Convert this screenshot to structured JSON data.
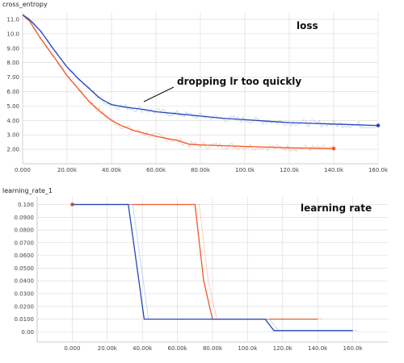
{
  "chart_data": [
    {
      "type": "line",
      "panel_title": "cross_entropy",
      "annotation_label": "loss",
      "callout_text": "dropping lr too quickly",
      "xlim": [
        0,
        160000
      ],
      "ylim": [
        1.0,
        11.5
      ],
      "x_ticks": [
        0,
        20000,
        40000,
        60000,
        80000,
        100000,
        120000,
        140000,
        160000
      ],
      "x_tick_labels": [
        "0.000",
        "20.00k",
        "40.00k",
        "60.00k",
        "80.00k",
        "100.0k",
        "120.0k",
        "140.0k",
        "160.0k"
      ],
      "y_ticks": [
        2,
        3,
        4,
        5,
        6,
        7,
        8,
        9,
        10,
        11
      ],
      "y_tick_labels": [
        "2.00",
        "3.00",
        "4.00",
        "5.00",
        "6.00",
        "7.00",
        "8.00",
        "9.00",
        "10.0",
        "11.0"
      ],
      "grid": true,
      "series": [
        {
          "color": "#f0582a",
          "x": [
            0,
            3000,
            8000,
            15000,
            20000,
            25000,
            30000,
            35000,
            40000,
            45000,
            50000,
            55000,
            60000,
            65000,
            70000,
            75000,
            80000,
            90000,
            100000,
            110000,
            120000,
            130000,
            140000
          ],
          "y": [
            11.3,
            10.9,
            9.7,
            8.2,
            7.1,
            6.2,
            5.3,
            4.6,
            4.0,
            3.6,
            3.3,
            3.1,
            2.9,
            2.75,
            2.6,
            2.35,
            2.3,
            2.25,
            2.2,
            2.15,
            2.1,
            2.08,
            2.05
          ]
        },
        {
          "color": "#2346b8",
          "x": [
            0,
            3000,
            8000,
            15000,
            20000,
            25000,
            30000,
            35000,
            40000,
            45000,
            50000,
            55000,
            60000,
            70000,
            80000,
            90000,
            100000,
            110000,
            120000,
            130000,
            140000,
            150000,
            160000
          ],
          "y": [
            11.3,
            11.0,
            10.2,
            8.7,
            7.7,
            6.9,
            6.2,
            5.5,
            5.1,
            4.95,
            4.85,
            4.75,
            4.6,
            4.45,
            4.3,
            4.15,
            4.05,
            3.95,
            3.85,
            3.8,
            3.75,
            3.7,
            3.65
          ]
        }
      ]
    },
    {
      "type": "line",
      "panel_title": "learning_rate_1",
      "annotation_label": "learning rate",
      "xlim": [
        -20000,
        180000
      ],
      "ylim": [
        -0.008,
        0.106
      ],
      "x_ticks": [
        0,
        20000,
        40000,
        60000,
        80000,
        100000,
        120000,
        140000,
        160000
      ],
      "x_tick_labels": [
        "0.000",
        "20.00k",
        "40.00k",
        "60.00k",
        "80.00k",
        "100.0k",
        "120.0k",
        "140.0k",
        "160.0k"
      ],
      "y_ticks": [
        0,
        0.01,
        0.02,
        0.03,
        0.04,
        0.05,
        0.06,
        0.07,
        0.08,
        0.09,
        0.1
      ],
      "y_tick_labels": [
        "0.00",
        "0.0100",
        "0.0200",
        "0.0300",
        "0.0400",
        "0.0500",
        "0.0600",
        "0.0700",
        "0.0800",
        "0.0900",
        "0.100"
      ],
      "grid": true,
      "series": [
        {
          "color": "#f0582a",
          "x": [
            0,
            70000,
            75000,
            80000,
            140000
          ],
          "y": [
            0.1,
            0.1,
            0.04,
            0.01,
            0.01
          ]
        },
        {
          "color": "#2346b8",
          "x": [
            0,
            32000,
            38000,
            41000,
            110000,
            115000,
            160000
          ],
          "y": [
            0.1,
            0.1,
            0.04,
            0.01,
            0.01,
            0.001,
            0.001
          ]
        }
      ]
    }
  ]
}
